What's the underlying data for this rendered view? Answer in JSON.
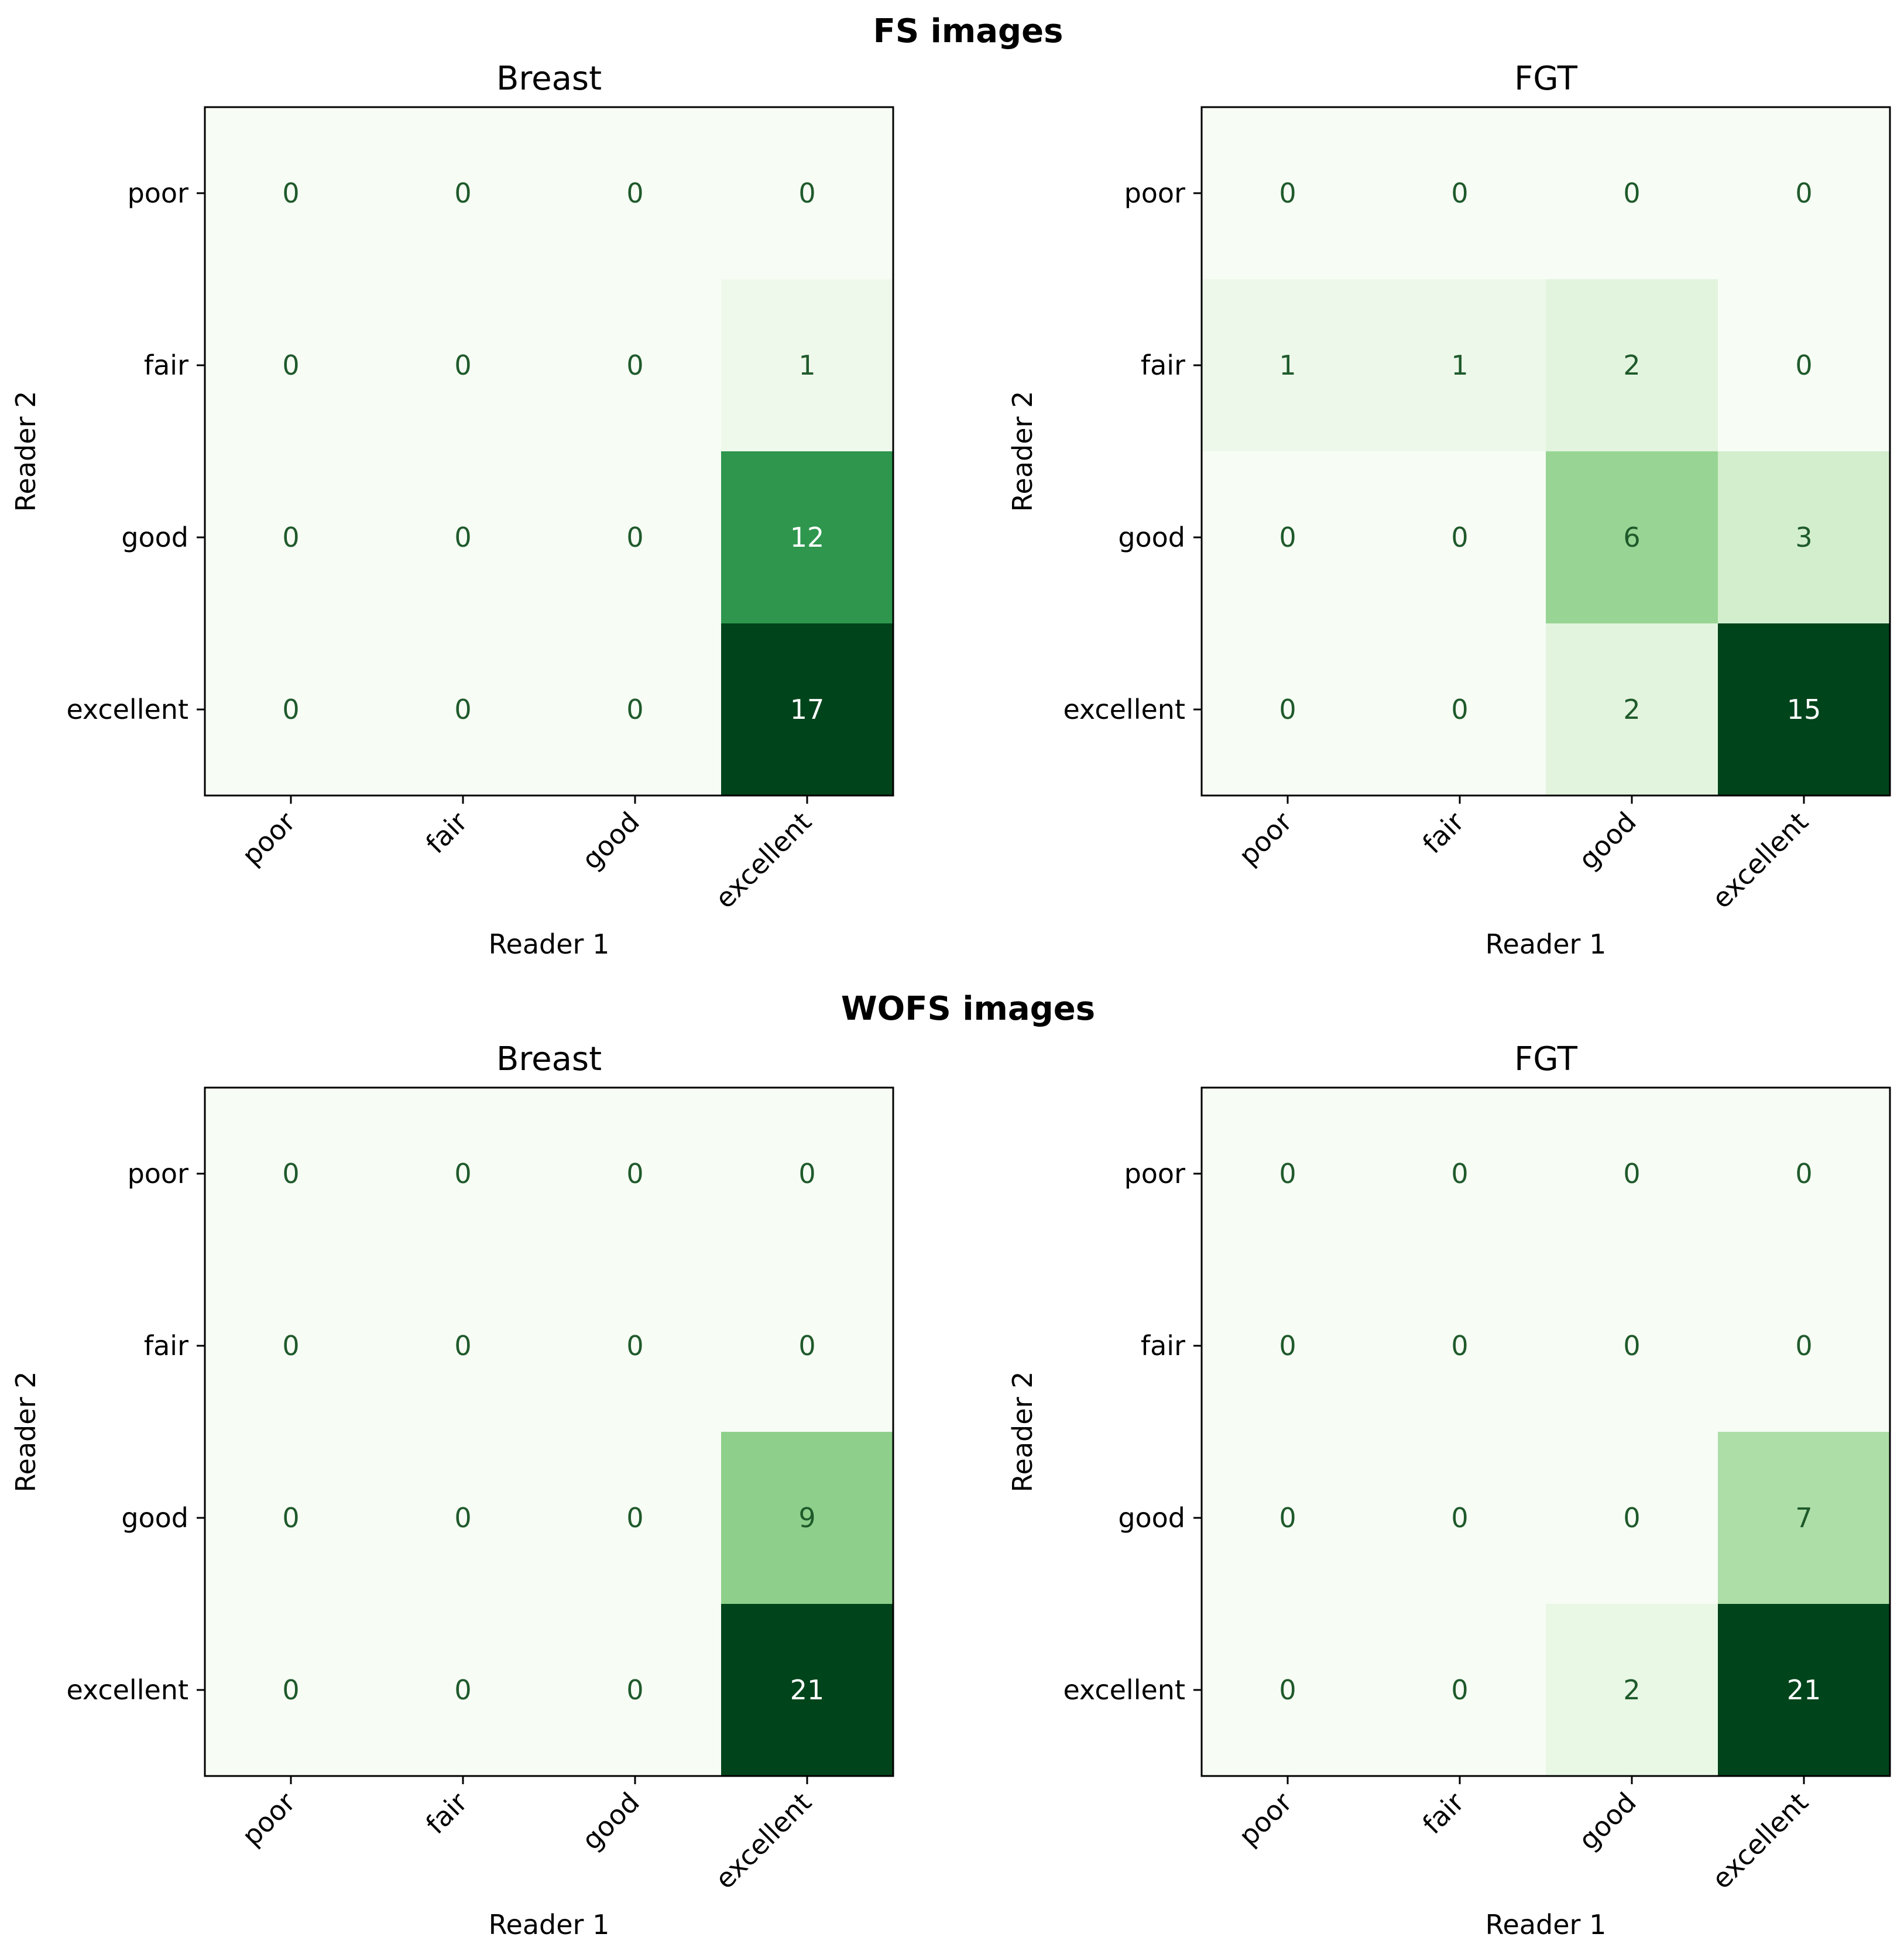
{
  "chart_data": [
    {
      "type": "heatmap",
      "group": "FS images",
      "title": "Breast",
      "xlabel": "Reader 1",
      "ylabel": "Reader 2",
      "x_categories": [
        "poor",
        "fair",
        "good",
        "excellent"
      ],
      "y_categories": [
        "poor",
        "fair",
        "good",
        "excellent"
      ],
      "matrix": [
        [
          0,
          0,
          0,
          0
        ],
        [
          0,
          0,
          0,
          1
        ],
        [
          0,
          0,
          0,
          12
        ],
        [
          0,
          0,
          0,
          17
        ]
      ],
      "colormap": "Greens"
    },
    {
      "type": "heatmap",
      "group": "FS images",
      "title": "FGT",
      "xlabel": "Reader 1",
      "ylabel": "Reader 2",
      "x_categories": [
        "poor",
        "fair",
        "good",
        "excellent"
      ],
      "y_categories": [
        "poor",
        "fair",
        "good",
        "excellent"
      ],
      "matrix": [
        [
          0,
          0,
          0,
          0
        ],
        [
          1,
          1,
          2,
          0
        ],
        [
          0,
          0,
          6,
          3
        ],
        [
          0,
          0,
          2,
          15
        ]
      ],
      "colormap": "Greens"
    },
    {
      "type": "heatmap",
      "group": "WOFS images",
      "title": "Breast",
      "xlabel": "Reader 1",
      "ylabel": "Reader 2",
      "x_categories": [
        "poor",
        "fair",
        "good",
        "excellent"
      ],
      "y_categories": [
        "poor",
        "fair",
        "good",
        "excellent"
      ],
      "matrix": [
        [
          0,
          0,
          0,
          0
        ],
        [
          0,
          0,
          0,
          0
        ],
        [
          0,
          0,
          0,
          9
        ],
        [
          0,
          0,
          0,
          21
        ]
      ],
      "colormap": "Greens"
    },
    {
      "type": "heatmap",
      "group": "WOFS images",
      "title": "FGT",
      "xlabel": "Reader 1",
      "ylabel": "Reader 2",
      "x_categories": [
        "poor",
        "fair",
        "good",
        "excellent"
      ],
      "y_categories": [
        "poor",
        "fair",
        "good",
        "excellent"
      ],
      "matrix": [
        [
          0,
          0,
          0,
          0
        ],
        [
          0,
          0,
          0,
          0
        ],
        [
          0,
          0,
          0,
          7
        ],
        [
          0,
          0,
          2,
          21
        ]
      ],
      "colormap": "Greens"
    }
  ],
  "suptitles": [
    "FS images",
    "WOFS images"
  ],
  "colors": {
    "text_dark": "#1f5a2b",
    "text_light": "#ffffff",
    "greens_low": "#f7fcf5",
    "greens_high": "#00441b"
  }
}
